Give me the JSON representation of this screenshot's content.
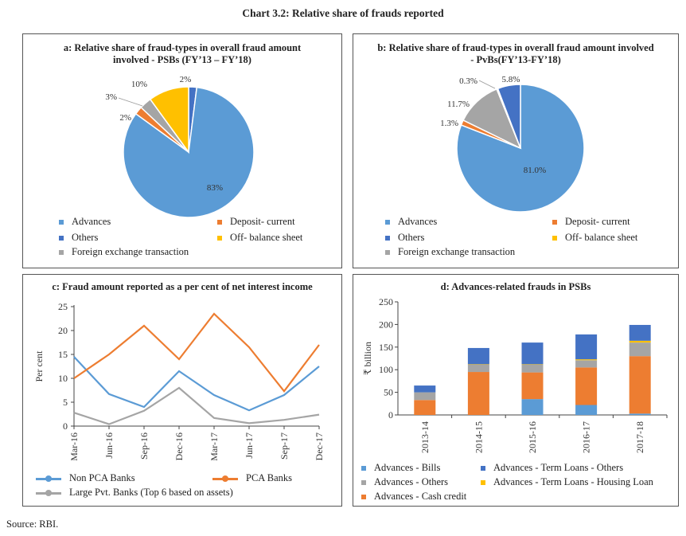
{
  "title": "Chart 3.2: Relative share of frauds reported",
  "source": "Source: RBI.",
  "chart_data": [
    {
      "id": "a",
      "type": "pie",
      "title": "a: Relative share of fraud-types in overall fraud amount involved - PSBs (FY’13 – FY’18)",
      "categories": [
        "Advances",
        "Deposit- current",
        "Others",
        "Off- balance sheet",
        "Foreign exchange transaction"
      ],
      "slices": [
        {
          "name": "Others",
          "value": 2,
          "label": "2%",
          "color": "#4472C4"
        },
        {
          "name": "Advances",
          "value": 83,
          "label": "83%",
          "color": "#5B9BD5"
        },
        {
          "name": "Deposit- current",
          "value": 2,
          "label": "2%",
          "color": "#ED7D31"
        },
        {
          "name": "Foreign exchange transaction",
          "value": 3,
          "label": "3%",
          "color": "#A5A5A5"
        },
        {
          "name": "Off- balance sheet",
          "value": 10,
          "label": "10%",
          "color": "#FFC000"
        }
      ],
      "legend": [
        {
          "name": "Advances",
          "color": "#5B9BD5"
        },
        {
          "name": "Deposit- current",
          "color": "#ED7D31"
        },
        {
          "name": "Others",
          "color": "#4472C4"
        },
        {
          "name": "Off- balance sheet",
          "color": "#FFC000"
        },
        {
          "name": "Foreign exchange transaction",
          "color": "#A5A5A5"
        }
      ]
    },
    {
      "id": "b",
      "type": "pie",
      "title": "b: Relative share of fraud-types in overall fraud amount involved - PvBs(FY’13-FY’18)",
      "slices": [
        {
          "name": "Advances",
          "value": 81.0,
          "label": "81.0%",
          "color": "#5B9BD5"
        },
        {
          "name": "Deposit- current",
          "value": 1.3,
          "label": "1.3%",
          "color": "#ED7D31"
        },
        {
          "name": "Foreign exchange transaction",
          "value": 11.7,
          "label": "11.7%",
          "color": "#A5A5A5"
        },
        {
          "name": "Off- balance sheet",
          "value": 0.3,
          "label": "0.3%",
          "color": "#FFC000"
        },
        {
          "name": "Others",
          "value": 5.8,
          "label": "5.8%",
          "color": "#4472C4"
        }
      ],
      "legend": [
        {
          "name": "Advances",
          "color": "#5B9BD5"
        },
        {
          "name": "Deposit- current",
          "color": "#ED7D31"
        },
        {
          "name": "Others",
          "color": "#4472C4"
        },
        {
          "name": "Off- balance sheet",
          "color": "#FFC000"
        },
        {
          "name": "Foreign exchange transaction",
          "color": "#A5A5A5"
        }
      ]
    },
    {
      "id": "c",
      "type": "line",
      "title": "c: Fraud amount reported as a per cent of net interest income",
      "ylabel": "Per cent",
      "ylim": [
        0,
        25
      ],
      "yticks": [
        "0",
        "5",
        "10",
        "15",
        "20",
        "25"
      ],
      "categories": [
        "Mar-16",
        "Jun-16",
        "Sep-16",
        "Dec-16",
        "Mar-17",
        "Jun-17",
        "Sep-17",
        "Dec-17"
      ],
      "series": [
        {
          "name": "Non PCA Banks",
          "color": "#5B9BD5",
          "values": [
            14.5,
            6.7,
            4.0,
            11.5,
            6.5,
            3.3,
            6.5,
            12.5
          ]
        },
        {
          "name": "PCA Banks",
          "color": "#ED7D31",
          "values": [
            10.0,
            15.0,
            21.0,
            14.0,
            23.5,
            16.5,
            7.3,
            17.0
          ]
        },
        {
          "name": "Large Pvt. Banks (Top 6 based on assets)",
          "color": "#A5A5A5",
          "values": [
            2.8,
            0.4,
            3.2,
            8.0,
            1.7,
            0.6,
            1.3,
            2.4
          ]
        }
      ],
      "grid": false
    },
    {
      "id": "d",
      "type": "bar",
      "stacked": true,
      "title": "d: Advances-related frauds in PSBs",
      "ylabel": "₹ billion",
      "ylim": [
        0,
        250
      ],
      "yticks": [
        "0",
        "50",
        "100",
        "150",
        "200",
        "250"
      ],
      "categories": [
        "2013-14",
        "2014-15",
        "2015-16",
        "2016-17",
        "2017-18"
      ],
      "series": [
        {
          "name": "Advances - Bills",
          "color": "#5B9BD5",
          "values": [
            0,
            0,
            35,
            22,
            3
          ]
        },
        {
          "name": "Advances - Cash credit",
          "color": "#ED7D31",
          "values": [
            33,
            95,
            59,
            83,
            127
          ]
        },
        {
          "name": "Advances - Others",
          "color": "#A5A5A5",
          "values": [
            17,
            16,
            17,
            16,
            30
          ]
        },
        {
          "name": "Advances - Term Loans - Housing Loan",
          "color": "#FFC000",
          "values": [
            0,
            1,
            1,
            2,
            4
          ]
        },
        {
          "name": "Advances - Term Loans - Others",
          "color": "#4472C4",
          "values": [
            15,
            36,
            48,
            55,
            35
          ]
        }
      ],
      "legend": [
        {
          "name": "Advances - Bills",
          "color": "#5B9BD5"
        },
        {
          "name": "Advances - Term Loans - Others",
          "color": "#4472C4"
        },
        {
          "name": "Advances - Others",
          "color": "#A5A5A5"
        },
        {
          "name": "Advances - Term Loans - Housing Loan",
          "color": "#FFC000"
        },
        {
          "name": "Advances - Cash credit",
          "color": "#ED7D31"
        }
      ]
    }
  ]
}
